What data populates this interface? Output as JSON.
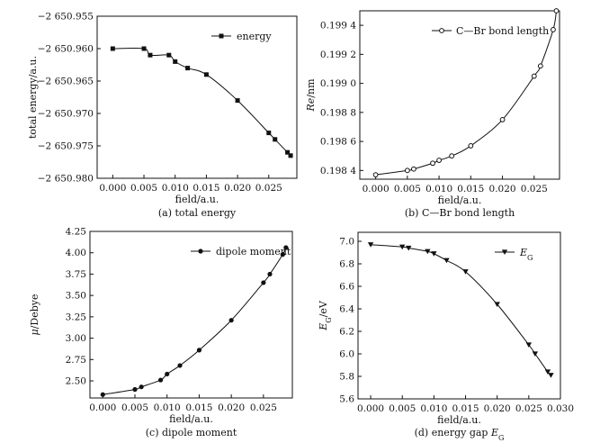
{
  "chart_data": [
    {
      "type": "line",
      "panel": "a",
      "title": "(a) total energy",
      "xlabel": "field/a.u.",
      "ylabel": "total energy/a.u.",
      "xlim": [
        -0.0025,
        0.0295
      ],
      "ylim": [
        -2650.98,
        -2650.955
      ],
      "xticks": [
        0.0,
        0.005,
        0.01,
        0.015,
        0.02,
        0.025
      ],
      "xtick_labels": [
        "0.000",
        "0.005",
        "0.010",
        "0.015",
        "0.020",
        "0.025"
      ],
      "yticks": [
        -2650.955,
        -2650.96,
        -2650.965,
        -2650.97,
        -2650.975,
        -2650.98
      ],
      "ytick_labels": [
        "−2 650.955",
        "−2 650.960",
        "−2 650.965",
        "−2 650.970",
        "−2 650.975",
        "−2 650.980"
      ],
      "legend": "energy",
      "legend_position": "top-right",
      "marker": "square",
      "series": [
        {
          "name": "energy",
          "x": [
            0.0,
            0.005,
            0.006,
            0.009,
            0.01,
            0.012,
            0.015,
            0.02,
            0.025,
            0.026,
            0.028,
            0.0285
          ],
          "y": [
            -2650.96,
            -2650.96,
            -2650.961,
            -2650.961,
            -2650.962,
            -2650.963,
            -2650.964,
            -2650.968,
            -2650.973,
            -2650.974,
            -2650.976,
            -2650.9765
          ]
        }
      ]
    },
    {
      "type": "line",
      "panel": "b",
      "title": "(b) C—Br bond length",
      "xlabel": "field/a.u.",
      "ylabel_italic": "Re",
      "ylabel_rest": "/nm",
      "xlim": [
        -0.0025,
        0.029
      ],
      "ylim": [
        0.19834,
        0.1995
      ],
      "xticks": [
        0.0,
        0.005,
        0.01,
        0.015,
        0.02,
        0.025
      ],
      "xtick_labels": [
        "0.000",
        "0.005",
        "0.010",
        "0.015",
        "0.020",
        "0.025"
      ],
      "yticks": [
        0.1984,
        0.1986,
        0.1988,
        0.199,
        0.1992,
        0.1994
      ],
      "ytick_labels": [
        "0.198 4",
        "0.198 6",
        "0.198 8",
        "0.199 0",
        "0.199 2",
        "0.199 4"
      ],
      "legend": "C—Br bond length",
      "legend_position": "top-right",
      "marker": "open-circle",
      "series": [
        {
          "name": "C—Br bond length",
          "x": [
            0.0,
            0.005,
            0.006,
            0.009,
            0.01,
            0.012,
            0.015,
            0.02,
            0.025,
            0.026,
            0.028,
            0.0285
          ],
          "y": [
            0.19837,
            0.1984,
            0.19841,
            0.19845,
            0.19847,
            0.1985,
            0.19857,
            0.19875,
            0.19905,
            0.19912,
            0.19937,
            0.1995
          ]
        }
      ]
    },
    {
      "type": "line",
      "panel": "c",
      "title": "(c) dipole moment",
      "xlabel": "field/a.u.",
      "ylabel_italic": "μ",
      "ylabel_rest": "/Debye",
      "xlim": [
        -0.002,
        0.0295
      ],
      "ylim": [
        2.3,
        4.25
      ],
      "xticks": [
        0.0,
        0.005,
        0.01,
        0.015,
        0.02,
        0.025
      ],
      "xtick_labels": [
        "0.000",
        "0.005",
        "0.010",
        "0.015",
        "0.020",
        "0.025"
      ],
      "yticks": [
        2.5,
        2.75,
        3.0,
        3.25,
        3.5,
        3.75,
        4.0,
        4.25
      ],
      "ytick_labels": [
        "2.50",
        "2.75",
        "3.00",
        "3.25",
        "3.50",
        "3.75",
        "4.00",
        "4.25"
      ],
      "legend": "dipole moment",
      "legend_position": "top-right",
      "marker": "filled-circle",
      "series": [
        {
          "name": "dipole moment",
          "x": [
            0.0,
            0.005,
            0.006,
            0.009,
            0.01,
            0.012,
            0.015,
            0.02,
            0.025,
            0.026,
            0.028,
            0.0285
          ],
          "y": [
            2.34,
            2.4,
            2.43,
            2.51,
            2.58,
            2.68,
            2.86,
            3.21,
            3.65,
            3.75,
            3.98,
            4.06
          ]
        }
      ]
    },
    {
      "type": "line",
      "panel": "d",
      "title_text": "(d) energy gap ",
      "title_italic": "E",
      "title_sub": "G",
      "xlabel": "field/a.u.",
      "ylabel_italic": "E",
      "ylabel_sub": "G",
      "ylabel_rest": "/eV",
      "xlim": [
        -0.002,
        0.03
      ],
      "ylim": [
        5.6,
        7.08
      ],
      "xticks": [
        0.0,
        0.005,
        0.01,
        0.015,
        0.02,
        0.025,
        0.03
      ],
      "xtick_labels": [
        "0.000",
        "0.005",
        "0.010",
        "0.015",
        "0.020",
        "0.025",
        "0.030"
      ],
      "yticks": [
        5.6,
        5.8,
        6.0,
        6.2,
        6.4,
        6.6,
        6.8,
        7.0
      ],
      "ytick_labels": [
        "5.6",
        "5.8",
        "6.0",
        "6.2",
        "6.4",
        "6.6",
        "6.8",
        "7.0"
      ],
      "legend_italic": "E",
      "legend_sub": "G",
      "legend_position": "top-right",
      "marker": "down-triangle",
      "series": [
        {
          "name": "EG",
          "x": [
            0.0,
            0.005,
            0.006,
            0.009,
            0.01,
            0.012,
            0.015,
            0.02,
            0.025,
            0.026,
            0.028,
            0.0285
          ],
          "y": [
            6.97,
            6.95,
            6.94,
            6.91,
            6.89,
            6.83,
            6.73,
            6.44,
            6.08,
            6.0,
            5.84,
            5.81
          ]
        }
      ]
    }
  ]
}
